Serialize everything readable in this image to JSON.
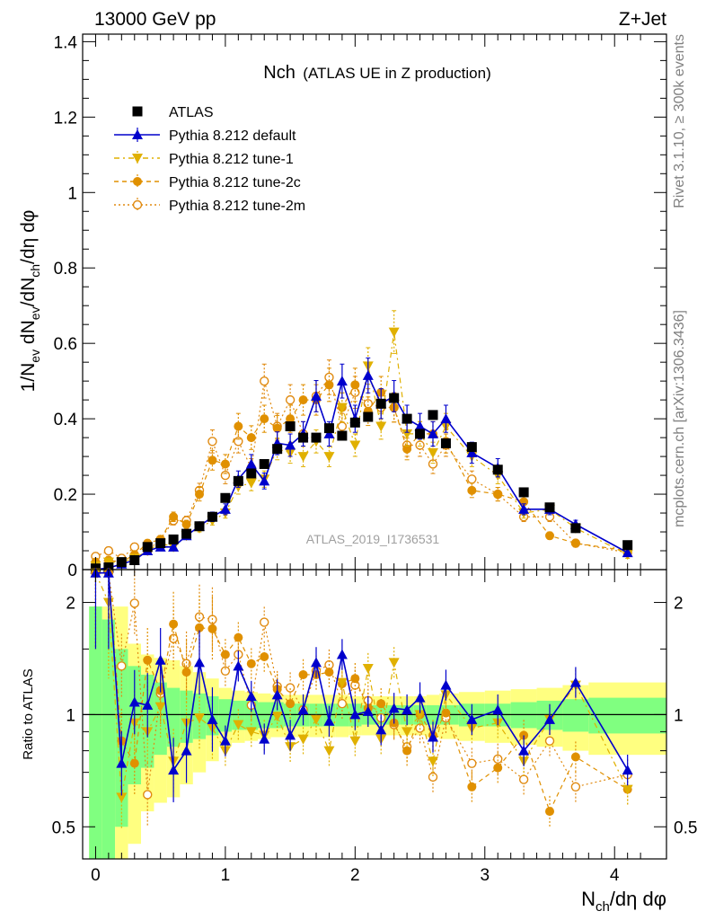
{
  "header": {
    "left": "13000 GeV pp",
    "right": "Z+Jet"
  },
  "side_labels": {
    "rivet": "Rivet 3.1.10, ≥ 300k events",
    "mcplots": "mcplots.cern.ch [arXiv:1306.3436]"
  },
  "analysis_id": "ATLAS_2019_I1736531",
  "colors": {
    "atlas": "#000000",
    "default": "#0000cc",
    "tune1": "#e0b000",
    "tune2c": "#e09000",
    "tune2m": "#e08a10",
    "band_inner": "#80ff80",
    "band_outer": "#ffff80"
  },
  "chart_data": [
    {
      "type": "line",
      "panel": "main",
      "title_main": "Nch",
      "title_sub": "(ATLAS UE in Z production)",
      "ylabel": "1/N_ev dN_ev/dN_ch/dη dφ",
      "ylabel_parts": {
        "a": "1/N",
        "b": "ev",
        "c": " dN",
        "d": "ev",
        "e": "/dN",
        "f": "ch",
        "g": "/dη dφ"
      },
      "xlim": [
        -0.1,
        4.4
      ],
      "ylim": [
        0,
        1.42
      ],
      "yticks": [
        0,
        0.2,
        0.4,
        0.6,
        0.8,
        1,
        1.2,
        1.4
      ],
      "ytick_labels": [
        "0",
        "0.2",
        "0.4",
        "0.6",
        "0.8",
        "1",
        "1.2",
        "1.4"
      ],
      "x": [
        0.0,
        0.1,
        0.2,
        0.3,
        0.4,
        0.5,
        0.6,
        0.7,
        0.8,
        0.9,
        1.0,
        1.1,
        1.2,
        1.3,
        1.4,
        1.5,
        1.6,
        1.7,
        1.8,
        1.9,
        2.0,
        2.1,
        2.2,
        2.3,
        2.4,
        2.5,
        2.6,
        2.7,
        2.9,
        3.1,
        3.3,
        3.5,
        3.7,
        4.1
      ],
      "series": [
        {
          "name": "ATLAS",
          "key": "atlas",
          "values": [
            0.003,
            0.006,
            0.02,
            0.025,
            0.06,
            0.07,
            0.08,
            0.095,
            0.115,
            0.14,
            0.19,
            0.235,
            0.255,
            0.28,
            0.32,
            0.38,
            0.35,
            0.35,
            0.375,
            0.355,
            0.39,
            0.405,
            0.44,
            0.455,
            0.4,
            0.36,
            0.41,
            0.335,
            0.325,
            0.265,
            0.205,
            0.165,
            0.11,
            0.065
          ]
        },
        {
          "name": "Pythia 8.212 default",
          "key": "default",
          "values": [
            0.001,
            0.004,
            0.015,
            0.025,
            0.05,
            0.06,
            0.06,
            0.09,
            0.115,
            0.14,
            0.16,
            0.24,
            0.28,
            0.235,
            0.335,
            0.33,
            0.36,
            0.46,
            0.36,
            0.5,
            0.4,
            0.515,
            0.44,
            0.46,
            0.4,
            0.38,
            0.36,
            0.4,
            0.31,
            0.27,
            0.16,
            0.16,
            0.12,
            0.045
          ]
        },
        {
          "name": "Pythia 8.212 tune-1",
          "key": "tune1",
          "values": [
            0.01,
            0.02,
            0.02,
            0.03,
            0.05,
            0.07,
            0.06,
            0.09,
            0.11,
            0.13,
            0.15,
            0.22,
            0.23,
            0.24,
            0.32,
            0.31,
            0.3,
            0.34,
            0.3,
            0.43,
            0.33,
            0.54,
            0.38,
            0.63,
            0.36,
            0.36,
            0.31,
            0.38,
            0.3,
            0.25,
            0.15,
            0.16,
            0.11,
            0.04
          ]
        },
        {
          "name": "Pythia 8.212 tune-2c",
          "key": "tune2c",
          "values": [
            0.02,
            0.025,
            0.02,
            0.04,
            0.07,
            0.08,
            0.14,
            0.12,
            0.2,
            0.29,
            0.28,
            0.38,
            0.35,
            0.4,
            0.375,
            0.4,
            0.45,
            0.45,
            0.49,
            0.43,
            0.49,
            0.42,
            0.47,
            0.43,
            0.32,
            0.36,
            0.36,
            0.34,
            0.21,
            0.2,
            0.18,
            0.09,
            0.07,
            0.05
          ]
        },
        {
          "name": "Pythia 8.212 tune-2m",
          "key": "tune2m",
          "values": [
            0.035,
            0.05,
            0.03,
            0.06,
            0.05,
            0.08,
            0.13,
            0.13,
            0.21,
            0.34,
            0.25,
            0.34,
            0.27,
            0.5,
            0.38,
            0.45,
            0.36,
            0.46,
            0.51,
            0.38,
            0.47,
            0.44,
            0.43,
            0.43,
            0.33,
            0.33,
            0.28,
            0.33,
            0.24,
            0.2,
            0.14,
            0.14,
            0.07,
            0.045
          ]
        }
      ],
      "legend_position": "top-left"
    },
    {
      "type": "line",
      "panel": "ratio",
      "ylabel": "Ratio to ATLAS",
      "xlabel": "N_ch/dη dφ",
      "xlabel_parts": {
        "a": "N",
        "b": "ch",
        "c": "/dη dφ"
      },
      "xlim": [
        -0.1,
        4.4
      ],
      "ylim": [
        0.41,
        2.45
      ],
      "yscale": "log",
      "yticks": [
        0.5,
        1,
        2
      ],
      "ytick_labels": [
        "0.5",
        "1",
        "2"
      ],
      "xticks": [
        0,
        1,
        2,
        3,
        4
      ],
      "xtick_labels": [
        "0",
        "1",
        "2",
        "3",
        "4"
      ],
      "reference": 1,
      "band_bins": [
        [
          -0.05,
          0.05
        ],
        [
          0.05,
          0.15
        ],
        [
          0.15,
          0.25
        ],
        [
          0.25,
          0.35
        ],
        [
          0.35,
          0.45
        ],
        [
          0.45,
          0.55
        ],
        [
          0.55,
          0.65
        ],
        [
          0.65,
          0.75
        ],
        [
          0.75,
          0.85
        ],
        [
          0.85,
          0.95
        ],
        [
          0.95,
          1.05
        ],
        [
          1.05,
          1.15
        ],
        [
          1.15,
          1.25
        ],
        [
          1.25,
          1.35
        ],
        [
          1.35,
          1.45
        ],
        [
          1.45,
          1.55
        ],
        [
          1.55,
          1.65
        ],
        [
          1.65,
          1.75
        ],
        [
          1.75,
          1.85
        ],
        [
          1.85,
          1.95
        ],
        [
          1.95,
          2.05
        ],
        [
          2.05,
          2.15
        ],
        [
          2.15,
          2.25
        ],
        [
          2.25,
          2.35
        ],
        [
          2.35,
          2.45
        ],
        [
          2.45,
          2.55
        ],
        [
          2.55,
          2.65
        ],
        [
          2.65,
          2.8
        ],
        [
          2.8,
          3.0
        ],
        [
          3.0,
          3.2
        ],
        [
          3.2,
          3.4
        ],
        [
          3.4,
          3.6
        ],
        [
          3.6,
          3.8
        ],
        [
          3.8,
          4.4
        ]
      ],
      "band_inner_half": [
        0.95,
        0.8,
        0.5,
        0.35,
        0.28,
        0.22,
        0.18,
        0.16,
        0.14,
        0.12,
        0.1,
        0.09,
        0.09,
        0.08,
        0.08,
        0.07,
        0.07,
        0.07,
        0.07,
        0.07,
        0.07,
        0.06,
        0.06,
        0.06,
        0.06,
        0.06,
        0.06,
        0.06,
        0.07,
        0.07,
        0.08,
        0.09,
        0.1,
        0.11
      ],
      "band_outer_half": [
        0.95,
        0.95,
        0.95,
        0.55,
        0.45,
        0.42,
        0.4,
        0.35,
        0.3,
        0.25,
        0.18,
        0.16,
        0.15,
        0.14,
        0.13,
        0.13,
        0.13,
        0.13,
        0.13,
        0.13,
        0.12,
        0.12,
        0.12,
        0.12,
        0.12,
        0.12,
        0.13,
        0.14,
        0.15,
        0.16,
        0.17,
        0.18,
        0.2,
        0.22
      ],
      "series": [
        {
          "name": "Pythia 8.212 default",
          "key": "default",
          "values": [
            2.4,
            2.4,
            0.74,
            1.08,
            1.06,
            1.4,
            0.71,
            0.8,
            1.38,
            0.97,
            0.85,
            1.35,
            1.12,
            0.86,
            1.13,
            0.88,
            1.03,
            1.38,
            0.96,
            1.45,
            1.0,
            1.02,
            0.91,
            1.04,
            1.03,
            1.11,
            0.87,
            1.2,
            0.97,
            1.03,
            0.8,
            0.97,
            1.22,
            0.71
          ]
        },
        {
          "name": "Pythia 8.212 tune-1",
          "key": "tune1",
          "values": [
            2.4,
            2.0,
            0.6,
            0.95,
            0.9,
            1.05,
            0.75,
            0.95,
            0.98,
            0.92,
            0.8,
            0.94,
            0.9,
            0.88,
            0.99,
            0.82,
            0.86,
            0.97,
            0.8,
            1.22,
            0.85,
            1.33,
            0.86,
            1.38,
            0.9,
            1.0,
            0.75,
            1.13,
            0.92,
            0.95,
            0.75,
            0.97,
            1.2,
            0.63
          ]
        },
        {
          "name": "Pythia 8.212 tune-2c",
          "key": "tune2c",
          "values": [
            2.4,
            2.4,
            0.85,
            0.74,
            1.4,
            1.16,
            1.75,
            1.3,
            1.71,
            1.7,
            1.45,
            1.61,
            1.37,
            1.43,
            1.17,
            1.07,
            1.28,
            1.28,
            1.3,
            1.21,
            1.25,
            1.04,
            1.07,
            0.95,
            0.8,
            1.0,
            0.88,
            1.01,
            0.64,
            0.72,
            0.88,
            0.55,
            0.77,
            0.63
          ]
        },
        {
          "name": "Pythia 8.212 tune-2m",
          "key": "tune2m",
          "values": [
            2.4,
            2.4,
            1.35,
            1.99,
            0.61,
            1.14,
            1.6,
            1.37,
            1.83,
            1.8,
            1.31,
            1.45,
            1.06,
            1.77,
            1.19,
            1.18,
            1.03,
            1.31,
            1.36,
            1.07,
            1.2,
            1.09,
            0.98,
            0.94,
            0.82,
            0.92,
            0.68,
            0.98,
            0.74,
            0.76,
            0.67,
            0.85,
            0.64,
            0.69
          ]
        }
      ]
    }
  ]
}
